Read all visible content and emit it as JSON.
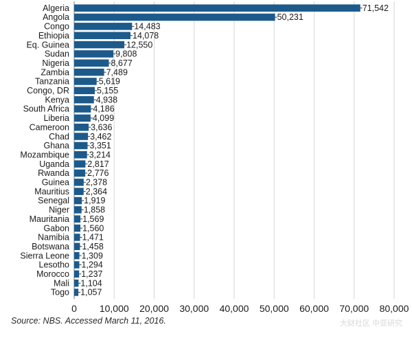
{
  "chart_data": {
    "type": "bar",
    "orientation": "horizontal",
    "title": "",
    "xlabel": "",
    "ylabel": "",
    "categories": [
      "Algeria",
      "Angola",
      "Congo",
      "Ethiopia",
      "Eq. Guinea",
      "Sudan",
      "Nigeria",
      "Zambia",
      "Tanzania",
      "Congo, DR",
      "Kenya",
      "South Africa",
      "Liberia",
      "Cameroon",
      "Chad",
      "Ghana",
      "Mozambique",
      "Uganda",
      "Rwanda",
      "Guinea",
      "Mauritius",
      "Senegal",
      "Niger",
      "Mauritania",
      "Gabon",
      "Namibia",
      "Botswana",
      "Sierra Leone",
      "Lesotho",
      "Morocco",
      "Mali",
      "Togo"
    ],
    "values": [
      71542,
      50231,
      14483,
      14078,
      12550,
      9808,
      8677,
      7489,
      5619,
      5155,
      4938,
      4186,
      4099,
      3636,
      3462,
      3351,
      3214,
      2817,
      2776,
      2378,
      2364,
      1919,
      1858,
      1569,
      1560,
      1471,
      1458,
      1309,
      1294,
      1237,
      1104,
      1057
    ],
    "value_labels": [
      "71,542",
      "50,231",
      "14,483",
      "14,078",
      "12,550",
      "9,808",
      "8,677",
      "7,489",
      "5,619",
      "5,155",
      "4,938",
      "4,186",
      "4,099",
      "3,636",
      "3,462",
      "3,351",
      "3,214",
      "2,817",
      "2,776",
      "2,378",
      "2,364",
      "1,919",
      "1,858",
      "1,569",
      "1,560",
      "1,471",
      "1,458",
      "1,309",
      "1,294",
      "1,237",
      "1,104",
      "1,057"
    ],
    "xlim": [
      0,
      80000
    ],
    "xticks": [
      0,
      10000,
      20000,
      30000,
      40000,
      50000,
      60000,
      70000,
      80000
    ],
    "xtick_labels": [
      "0",
      "10,000",
      "20,000",
      "30,000",
      "40,000",
      "50,000",
      "60,000",
      "70,000",
      "80,000"
    ],
    "grid": true,
    "bar_color": "#1d5a8c",
    "grid_color": "#d6d6d6"
  },
  "source": "Source: NBS. Accessed March 11, 2016.",
  "watermark": "大财社区 中亚研究"
}
